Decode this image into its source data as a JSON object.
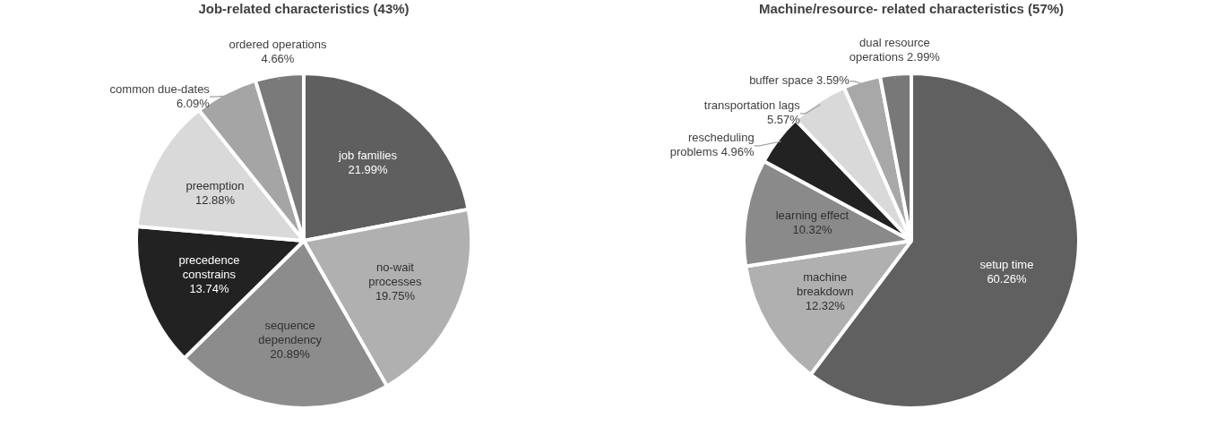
{
  "chart_data": [
    {
      "type": "pie",
      "title": "Job-related characteristics (43%)",
      "categories": [
        "job families",
        "no-wait processes",
        "sequence dependency",
        "precedence constrains",
        "preemption",
        "common due-dates",
        "ordered operations"
      ],
      "values": [
        21.99,
        19.75,
        20.89,
        13.74,
        12.88,
        6.09,
        4.66
      ],
      "value_labels": [
        "21.99%",
        "19.75%",
        "20.89%",
        "13.74%",
        "12.88%",
        "6.09%",
        "4.66%"
      ],
      "colors": [
        "#5f5f5f",
        "#b0b0b0",
        "#8c8c8c",
        "#222222",
        "#d9d9d9",
        "#a5a5a5",
        "#7a7a7a"
      ],
      "legend": false
    },
    {
      "type": "pie",
      "title": "Machine/resource- related characteristics (57%)",
      "categories": [
        "setup time",
        "machine breakdown",
        "learning effect",
        "rescheduling problems",
        "transportation lags",
        "buffer space",
        "dual resource operations"
      ],
      "values": [
        60.26,
        12.32,
        10.32,
        4.96,
        5.57,
        3.59,
        2.99
      ],
      "value_labels": [
        "60.26%",
        "12.32%",
        "10.32%",
        "4.96%",
        "5.57%",
        "3.59%",
        "2.99%"
      ],
      "colors": [
        "#606060",
        "#b0b0b0",
        "#8a8a8a",
        "#222222",
        "#d9d9d9",
        "#a8a8a8",
        "#787878"
      ],
      "legend": false
    }
  ]
}
